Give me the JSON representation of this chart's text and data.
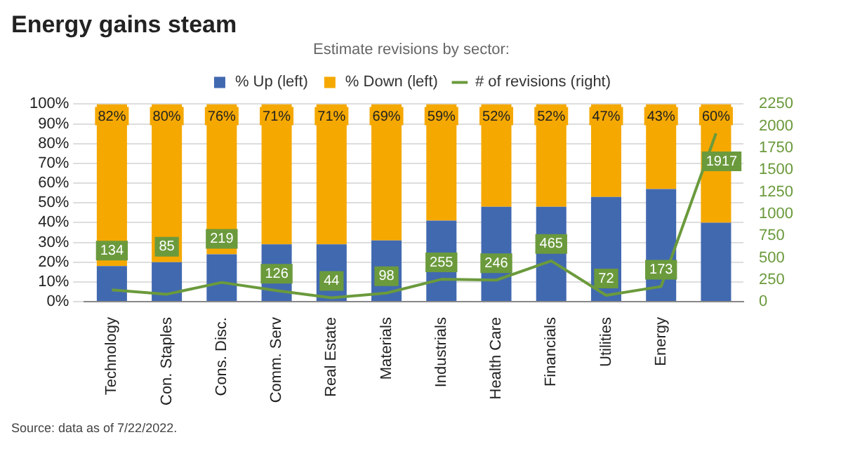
{
  "chart_data": {
    "type": "bar",
    "title": "Energy gains steam",
    "legend_title": "Estimate revisions by sector:",
    "categories": [
      "Technology",
      "Con. Staples",
      "Cons. Disc.",
      "Comm. Serv",
      "Real Estate",
      "Materials",
      "Industrials",
      "Health Care",
      "Financials",
      "Utilities",
      "Energy",
      null
    ],
    "series": [
      {
        "name": "% Up (left)",
        "color": "#4169b0",
        "values": [
          18,
          20,
          24,
          29,
          29,
          31,
          41,
          48,
          48,
          53,
          57,
          40
        ]
      },
      {
        "name": "% Down (left)",
        "color": "#f5a800",
        "values": [
          82,
          80,
          76,
          71,
          71,
          69,
          59,
          52,
          52,
          47,
          43,
          60
        ],
        "value_labels": [
          "82%",
          "80%",
          "76%",
          "71%",
          "71%",
          "69%",
          "59%",
          "52%",
          "52%",
          "47%",
          "43%",
          "60%"
        ]
      },
      {
        "name": "# of revisions (right)",
        "type": "line",
        "axis": "y2",
        "color": "#6b9a3c",
        "values": [
          134,
          85,
          219,
          126,
          44,
          98,
          255,
          246,
          465,
          72,
          173,
          1917
        ],
        "value_labels": [
          "134",
          "85",
          "219",
          "126",
          "44",
          "98",
          "255",
          "246",
          "465",
          "72",
          "173",
          "1917"
        ]
      }
    ],
    "stacked": true,
    "ylim": [
      0,
      100
    ],
    "yticks": [
      {
        "value": 0,
        "label": "0%"
      },
      {
        "value": 10,
        "label": "10%"
      },
      {
        "value": 20,
        "label": "20%"
      },
      {
        "value": 30,
        "label": "30%"
      },
      {
        "value": 40,
        "label": "40%"
      },
      {
        "value": 50,
        "label": "50%"
      },
      {
        "value": 60,
        "label": "60%"
      },
      {
        "value": 70,
        "label": "70%"
      },
      {
        "value": 80,
        "label": "80%"
      },
      {
        "value": 90,
        "label": "90%"
      },
      {
        "value": 100,
        "label": "100%"
      }
    ],
    "y2lim": [
      0,
      2250
    ],
    "y2ticks": [
      0,
      250,
      500,
      750,
      1000,
      1250,
      1500,
      1750,
      2000,
      2250
    ],
    "grid": "y",
    "legend": "top",
    "annotations": [
      "Source: data as of 7/22/2022."
    ]
  }
}
